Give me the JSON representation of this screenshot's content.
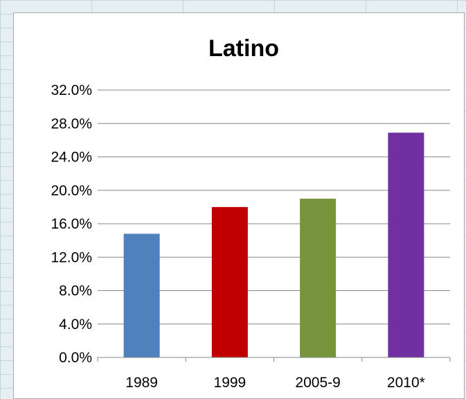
{
  "chart_data": {
    "type": "bar",
    "title": "Latino",
    "xlabel": "",
    "ylabel": "",
    "categories": [
      "1989",
      "1999",
      "2005-9",
      "2010*"
    ],
    "values": [
      14.8,
      18.0,
      19.0,
      26.9
    ],
    "ylim": [
      0,
      32
    ],
    "y_ticks": [
      "0.0%",
      "4.0%",
      "8.0%",
      "12.0%",
      "16.0%",
      "20.0%",
      "24.0%",
      "28.0%",
      "32.0%"
    ],
    "bar_colors": [
      "#4f81bd",
      "#c00000",
      "#77933c",
      "#7030a0"
    ],
    "grid": true,
    "legend": "none"
  }
}
